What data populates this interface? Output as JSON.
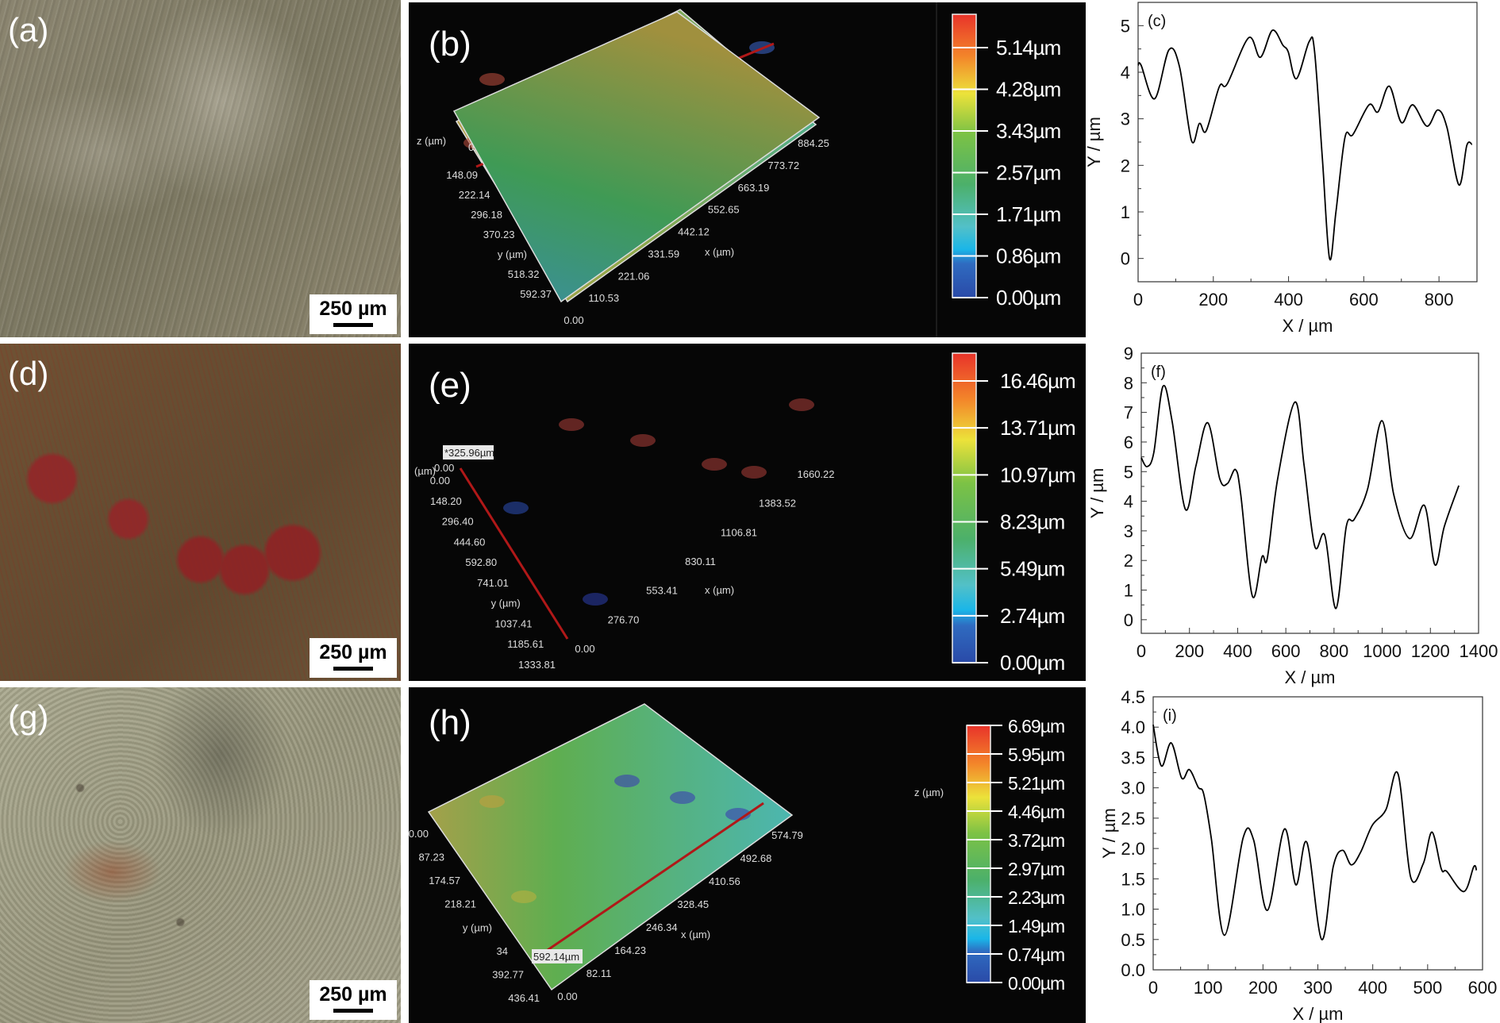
{
  "photos": [
    {
      "label": "(a)",
      "scale": "250 µm"
    },
    {
      "label": "(d)",
      "scale": "250 µm"
    },
    {
      "label": "(g)",
      "scale": "250 µm"
    }
  ],
  "surfaces": [
    {
      "label": "(b)",
      "z_label": "z (µm)",
      "z_zero": "0.00",
      "x_label": "x (µm)",
      "y_ticks": [
        "148.09",
        "222.14",
        "296.18",
        "370.23",
        "y (µm)",
        "518.32",
        "592.37"
      ],
      "x_ticks": [
        "0.00",
        "110.53",
        "221.06",
        "331.59",
        "442.12",
        "552.65",
        "663.19",
        "773.72",
        "884.25"
      ],
      "colorbar": [
        "0.00µm",
        "0.86µm",
        "1.71µm",
        "2.57µm",
        "3.43µm",
        "4.28µm",
        "5.14µm"
      ]
    },
    {
      "label": "(e)",
      "z_label": "(µm)",
      "z_zero": "0.00",
      "x_label": "x (µm)",
      "marker": "*325.96µm",
      "y_ticks": [
        "0.00",
        "148.20",
        "296.40",
        "444.60",
        "592.80",
        "741.01",
        "y (µm)",
        "1037.41",
        "1185.61",
        "1333.81"
      ],
      "x_ticks": [
        "0.00",
        "276.70",
        "553.41",
        "830.11",
        "1106.81",
        "1383.52",
        "1660.22"
      ],
      "colorbar": [
        "0.00µm",
        "2.74µm",
        "5.49µm",
        "8.23µm",
        "10.97µm",
        "13.71µm",
        "16.46µm"
      ]
    },
    {
      "label": "(h)",
      "z_label": "z (µm)",
      "x_label": "x (µm)",
      "marker": "592.14µm",
      "y_ticks": [
        "0.00",
        "87.23",
        "174.57",
        "218.21",
        "y (µm)",
        "34",
        "392.77",
        "436.41"
      ],
      "x_ticks": [
        "0.00",
        "82.11",
        "164.23",
        "246.34",
        "328.45",
        "410.56",
        "492.68",
        "574.79"
      ],
      "colorbar": [
        "0.00µm",
        "0.74µm",
        "1.49µm",
        "2.23µm",
        "2.97µm",
        "3.72µm",
        "4.46µm",
        "5.21µm",
        "5.95µm",
        "6.69µm"
      ]
    }
  ],
  "chart_data": [
    {
      "type": "line",
      "panel": "(c)",
      "xlabel": "X / µm",
      "ylabel": "Y / µm",
      "xlim": [
        0,
        901
      ],
      "ylim": [
        -0.5,
        5.5
      ],
      "xticks": [
        0,
        200,
        400,
        600,
        800
      ],
      "yticks": [
        0,
        1,
        2,
        3,
        4,
        5
      ],
      "color": "#000000",
      "x": [
        0,
        8,
        44,
        82,
        110,
        142,
        163,
        181,
        216,
        237,
        294,
        325,
        357,
        385,
        399,
        421,
        455,
        469,
        490,
        509,
        526,
        550,
        571,
        614,
        638,
        668,
        700,
        730,
        768,
        797,
        821,
        853,
        874,
        888
      ],
      "y": [
        4.15,
        4.15,
        3.43,
        4.48,
        4.12,
        2.53,
        2.9,
        2.74,
        3.69,
        3.75,
        4.74,
        4.32,
        4.9,
        4.58,
        4.44,
        3.86,
        4.66,
        4.46,
        2.14,
        0,
        1.0,
        2.6,
        2.66,
        3.3,
        3.15,
        3.7,
        2.92,
        3.3,
        2.84,
        3.19,
        2.82,
        1.58,
        2.43,
        2.45
      ]
    },
    {
      "type": "line",
      "panel": "(f)",
      "xlabel": "X / µm",
      "ylabel": "Y / µm",
      "xlim": [
        0,
        1400
      ],
      "ylim": [
        -0.46,
        9
      ],
      "xticks": [
        0,
        200,
        400,
        600,
        800,
        1000,
        1200,
        1400
      ],
      "yticks": [
        0,
        1,
        2,
        3,
        4,
        5,
        6,
        7,
        8,
        9
      ],
      "color": "#000000",
      "x": [
        0,
        24,
        52,
        90,
        128,
        183,
        227,
        276,
        326,
        358,
        391,
        413,
        461,
        501,
        523,
        566,
        638,
        676,
        720,
        762,
        808,
        851,
        884,
        939,
        999,
        1048,
        1114,
        1175,
        1219,
        1258,
        1318
      ],
      "y": [
        5.47,
        5.17,
        5.64,
        7.88,
        6.7,
        3.73,
        5.2,
        6.65,
        4.75,
        4.6,
        5.07,
        4.22,
        0.8,
        2.12,
        2.07,
        4.75,
        7.35,
        5.2,
        2.48,
        2.84,
        0.38,
        3.15,
        3.39,
        4.4,
        6.72,
        4.22,
        2.74,
        3.86,
        1.85,
        3.15,
        4.53
      ]
    },
    {
      "type": "line",
      "panel": "(i)",
      "xlabel": "X / µm",
      "ylabel": "Y / µm",
      "xlim": [
        0,
        600
      ],
      "ylim": [
        0,
        4.5
      ],
      "xticks": [
        0,
        100,
        200,
        300,
        400,
        500,
        600
      ],
      "yticks": [
        "0.0",
        "0.5",
        "1.0",
        "1.5",
        "2.0",
        "2.5",
        "3.0",
        "3.5",
        "4.0",
        "4.5"
      ],
      "color": "#000000",
      "x": [
        0,
        15,
        33,
        52,
        66,
        82,
        92,
        106,
        130,
        164,
        183,
        208,
        239,
        260,
        280,
        307,
        328,
        345,
        361,
        378,
        399,
        424,
        446,
        469,
        492,
        508,
        525,
        535,
        566,
        584,
        589
      ],
      "y": [
        4.04,
        3.36,
        3.74,
        3.16,
        3.3,
        3.01,
        2.9,
        2.16,
        0.57,
        2.18,
        2.14,
        0.98,
        2.32,
        1.4,
        2.1,
        0.5,
        1.7,
        1.97,
        1.73,
        1.94,
        2.38,
        2.64,
        3.23,
        1.53,
        1.75,
        2.27,
        1.66,
        1.62,
        1.29,
        1.7,
        1.64
      ]
    }
  ]
}
